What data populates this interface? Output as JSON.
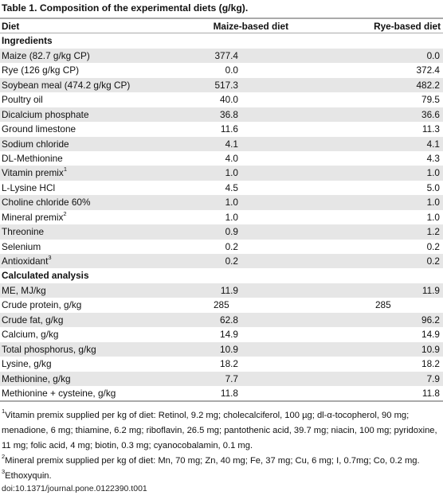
{
  "caption": "Table 1.  Composition of the experimental diets (g/kg).",
  "header": {
    "col0": "Diet",
    "col1": "Maize-based diet",
    "col2": "Rye-based diet"
  },
  "rows": [
    {
      "type": "section",
      "label": "Ingredients"
    },
    {
      "label": "Maize (82.7 g/kg CP)",
      "v1": "377.4",
      "v2": "0.0"
    },
    {
      "label": "Rye (126 g/kg CP)",
      "v1": "0.0",
      "v2": "372.4"
    },
    {
      "label": "Soybean meal (474.2 g/kg CP)",
      "v1": "517.3",
      "v2": "482.2"
    },
    {
      "label": "Poultry oil",
      "v1": "40.0",
      "v2": "79.5"
    },
    {
      "label": "Dicalcium phosphate",
      "v1": "36.8",
      "v2": "36.6"
    },
    {
      "label": "Ground limestone",
      "v1": "11.6",
      "v2": "11.3"
    },
    {
      "label": "Sodium chloride",
      "v1": "4.1",
      "v2": "4.1"
    },
    {
      "label": "DL-Methionine",
      "v1": "4.0",
      "v2": "4.3"
    },
    {
      "label": "Vitamin premix",
      "sup": "1",
      "v1": "1.0",
      "v2": "1.0"
    },
    {
      "label": "L-Lysine HCl",
      "v1": "4.5",
      "v2": "5.0"
    },
    {
      "label": "Choline chloride 60%",
      "v1": "1.0",
      "v2": "1.0"
    },
    {
      "label": "Mineral premix",
      "sup": "2",
      "v1": "1.0",
      "v2": "1.0"
    },
    {
      "label": "Threonine",
      "v1": "0.9",
      "v2": "1.2"
    },
    {
      "label": "Selenium",
      "v1": "0.2",
      "v2": "0.2"
    },
    {
      "label": "Antioxidant",
      "sup": "3",
      "v1": "0.2",
      "v2": "0.2"
    },
    {
      "type": "section",
      "label": "Calculated analysis"
    },
    {
      "label": "ME, MJ/kg",
      "v1": "11.9",
      "v2": "11.9"
    },
    {
      "label": "Crude protein, g/kg",
      "v1": "285",
      "v2": "285",
      "center": true
    },
    {
      "label": "Crude fat, g/kg",
      "v1": "62.8",
      "v2": "96.2"
    },
    {
      "label": "Calcium, g/kg",
      "v1": "14.9",
      "v2": "14.9"
    },
    {
      "label": "Total phosphorus, g/kg",
      "v1": "10.9",
      "v2": "10.9"
    },
    {
      "label": "Lysine, g/kg",
      "v1": "18.2",
      "v2": "18.2"
    },
    {
      "label": "Methionine, g/kg",
      "v1": "7.7",
      "v2": "7.9"
    },
    {
      "label": "Methionine + cysteine, g/kg",
      "v1": "11.8",
      "v2": "11.8"
    }
  ],
  "footnotes": [
    {
      "sup": "1",
      "text": "Vitamin premix supplied per kg of diet: Retinol, 9.2 mg; cholecalciferol, 100 µg; dl-α-tocopherol, 90 mg; menadione, 6 mg; thiamine, 6.2 mg; riboflavin, 26.5 mg; pantothenic acid, 39.7 mg; niacin, 100 mg; pyridoxine, 11 mg; folic acid, 4 mg; biotin, 0.3 mg; cyanocobalamin, 0.1 mg."
    },
    {
      "sup": "2",
      "text": "Mineral premix supplied per kg of diet: Mn, 70 mg; Zn, 40 mg; Fe, 37 mg; Cu, 6 mg; I, 0.7mg; Co, 0.2 mg."
    },
    {
      "sup": "3",
      "text": "Ethoxyquin."
    }
  ],
  "doi": "doi:10.1371/journal.pone.0122390.t001"
}
